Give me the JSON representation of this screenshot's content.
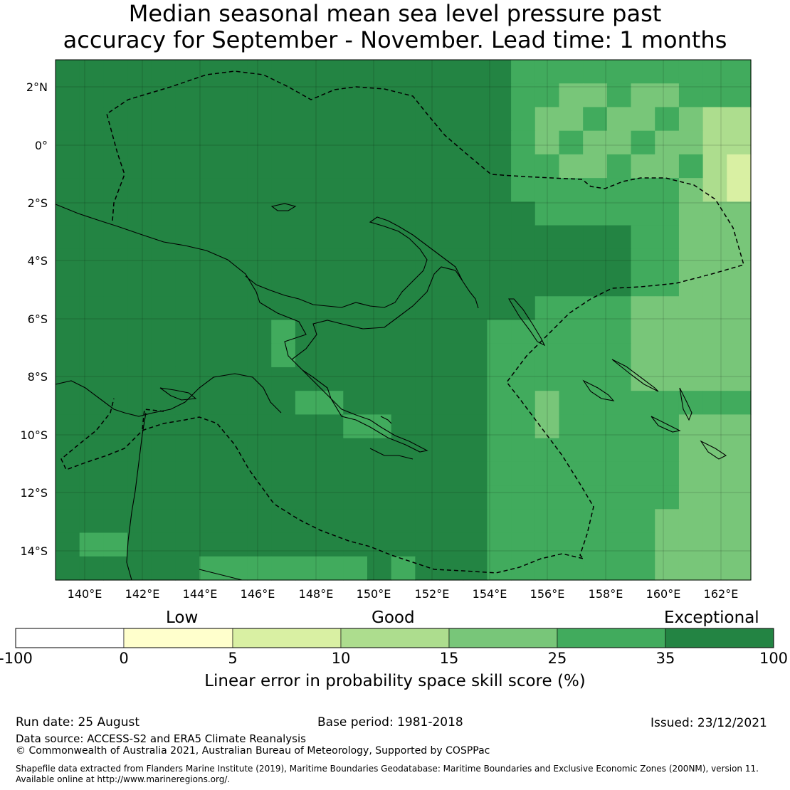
{
  "title_line1": "Median seasonal mean sea level pressure past",
  "title_line2": "accuracy for September - November. Lead time: 1 months",
  "map": {
    "lat_labels": [
      "2°N",
      "0°",
      "2°S",
      "4°S",
      "6°S",
      "8°S",
      "10°S",
      "12°S",
      "14°S"
    ],
    "lon_labels": [
      "140°E",
      "142°E",
      "144°E",
      "146°E",
      "148°E",
      "150°E",
      "152°E",
      "154°E",
      "156°E",
      "158°E",
      "160°E",
      "162°E"
    ]
  },
  "colorbar": {
    "categories": [
      "Low",
      "Good",
      "Exceptional"
    ],
    "ticks": [
      "-100",
      "0",
      "5",
      "10",
      "15",
      "25",
      "35",
      "100"
    ],
    "colors": [
      "#ffffff",
      "#ffffcc",
      "#d9f0a3",
      "#addd8e",
      "#78c679",
      "#41ab5d",
      "#238443"
    ],
    "label": "Linear error in probability space skill score (%)"
  },
  "footer": {
    "run_date": "Run date: 25 August",
    "base_period": "Base period: 1981-2018",
    "issued": "Issued: 23/12/2021",
    "data_source": "Data source: ACCESS-S2 and ERA5 Climate Reanalysis",
    "copyright": "© Commonwealth of Australia 2021, Australian Bureau of Meteorology, Supported by COSPPac",
    "shapefile_line1": "Shapefile data extracted from Flanders Marine Institute (2019), Maritime Boundaries Geodatabase: Maritime Boundaries and Exclusive Economic Zones (200NM), version 11.",
    "shapefile_line2": "Available online at http://www.marineregions.org/."
  }
}
